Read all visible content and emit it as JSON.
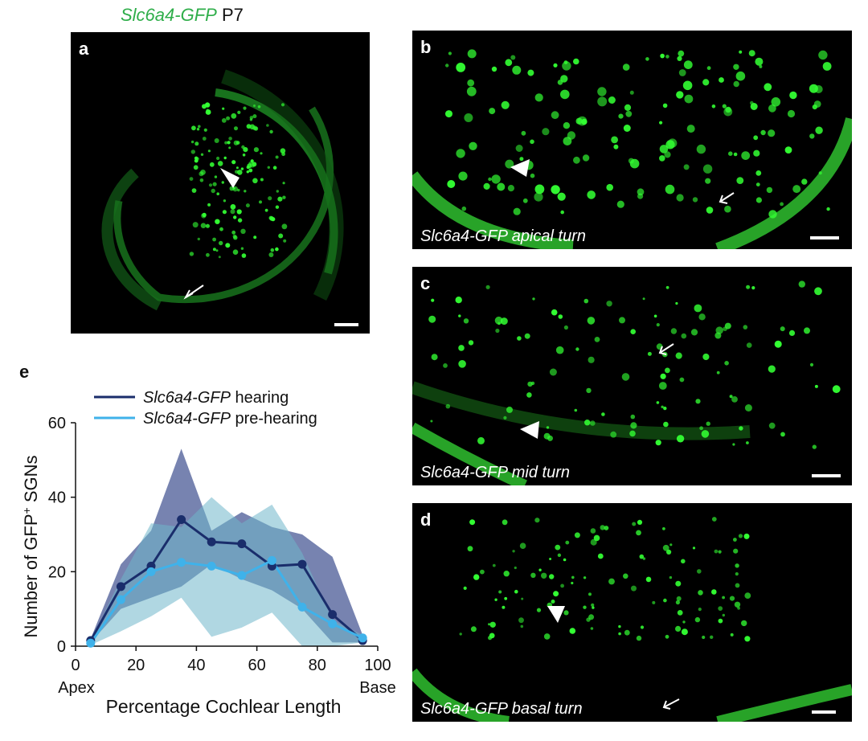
{
  "figure": {
    "title_gene": "Slc6a4-GFP",
    "title_age": "P7",
    "panels": [
      {
        "label": "a",
        "caption": ""
      },
      {
        "label": "b",
        "caption": "Slc6a4-GFP apical turn"
      },
      {
        "label": "c",
        "caption": "Slc6a4-GFP mid turn"
      },
      {
        "label": "d",
        "caption": "Slc6a4-GFP basal turn"
      }
    ],
    "panel_e_label": "e",
    "colors": {
      "gfp": "#33ff33",
      "hearing": "#1a2d6b",
      "pre_hearing": "#3fb2ea"
    }
  },
  "chart_data": {
    "type": "line",
    "title": "",
    "xlabel": "Percentage Cochlear Length",
    "ylabel_main": "Number of GFP",
    "ylabel_sup": "+",
    "ylabel_tail": " SGNs",
    "xlim": [
      0,
      100
    ],
    "ylim": [
      0,
      60
    ],
    "xticks": [
      0,
      20,
      40,
      60,
      80,
      100
    ],
    "yticks": [
      0,
      20,
      40,
      60
    ],
    "x_end_labels": {
      "left": "Apex",
      "right": "Base"
    },
    "legend_placement": "top",
    "x": [
      5,
      15,
      25,
      35,
      45,
      55,
      65,
      75,
      85,
      95
    ],
    "series": [
      {
        "name_italic": "Slc6a4-GFP",
        "name_rest": " hearing",
        "color": "#1a2d6b",
        "band_color": "#4a5a95",
        "values": [
          1.5,
          16,
          21.5,
          34,
          28,
          27.5,
          21.5,
          22,
          8.5,
          1.5
        ],
        "band_upper": [
          2,
          22,
          31,
          53,
          31,
          36,
          32,
          30,
          24,
          3
        ],
        "band_lower": [
          1,
          10,
          13,
          16,
          22,
          18,
          15,
          10,
          1,
          1
        ]
      },
      {
        "name_italic": "Slc6a4-GFP",
        "name_rest": " pre-hearing",
        "color": "#3fb2ea",
        "band_color": "#6fb6ca",
        "values": [
          0.8,
          12.5,
          20,
          22.5,
          21.5,
          19,
          23,
          10.5,
          6,
          2.2
        ],
        "band_upper": [
          1.5,
          18,
          33,
          32,
          40,
          33,
          38,
          25,
          7,
          3
        ],
        "band_lower": [
          0.3,
          4,
          8,
          13,
          2.5,
          5,
          9,
          0,
          0,
          1
        ]
      }
    ]
  }
}
